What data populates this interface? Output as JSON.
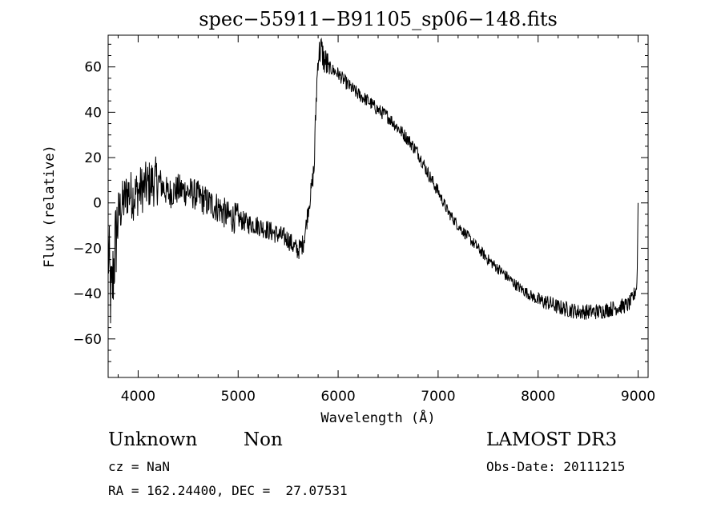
{
  "chart_data": {
    "type": "line",
    "title": "spec−55911−B91105_sp06−148.fits",
    "xlabel": "Wavelength (Å)",
    "ylabel": "Flux (relative)",
    "xlim": [
      3700,
      9100
    ],
    "ylim": [
      -77,
      74
    ],
    "xticks": [
      4000,
      5000,
      6000,
      7000,
      8000,
      9000
    ],
    "yticks": [
      -60,
      -40,
      -20,
      0,
      20,
      40,
      60
    ],
    "ytick_labels": [
      "−60",
      "−40",
      "−20",
      "0",
      "20",
      "40",
      "60"
    ],
    "grid": false,
    "series": [
      {
        "x": [
          3700,
          3730,
          3760,
          3800,
          3850,
          3900,
          3950,
          4000,
          4100,
          4200,
          4300,
          4400,
          4500,
          4600,
          4700,
          4800,
          4900,
          5000,
          5100,
          5200,
          5300,
          5400,
          5500,
          5550,
          5600,
          5650,
          5680,
          5700,
          5730,
          5760,
          5780,
          5800,
          5830,
          5860,
          5900,
          6000,
          6100,
          6200,
          6300,
          6400,
          6500,
          6600,
          6700,
          6800,
          6900,
          7000,
          7100,
          7200,
          7300,
          7400,
          7500,
          7600,
          7700,
          7800,
          7900,
          8000,
          8100,
          8200,
          8300,
          8400,
          8500,
          8600,
          8700,
          8800,
          8900,
          8950,
          8990,
          9000
        ],
        "y": [
          -20,
          -45,
          -25,
          -5,
          0,
          5,
          3,
          5,
          8,
          10,
          4,
          6,
          5,
          3,
          0,
          -2,
          -6,
          -7,
          -9,
          -10,
          -12,
          -14,
          -16,
          -19,
          -21,
          -18,
          -10,
          -3,
          5,
          15,
          45,
          65,
          68,
          63,
          60,
          57,
          52,
          48,
          45,
          41,
          38,
          33,
          28,
          22,
          13,
          5,
          -4,
          -10,
          -15,
          -20,
          -25,
          -29,
          -33,
          -37,
          -40,
          -43,
          -44,
          -46,
          -47,
          -48,
          -48,
          -48,
          -47,
          -46,
          -45,
          -42,
          -36,
          0
        ]
      }
    ]
  },
  "info": {
    "object_class": "Unknown",
    "subclass": "Non",
    "survey": "LAMOST DR3",
    "redshift": "cz = NaN",
    "obs_date": "Obs-Date: 20111215",
    "coords": "RA = 162.24400, DEC =  27.07531"
  }
}
